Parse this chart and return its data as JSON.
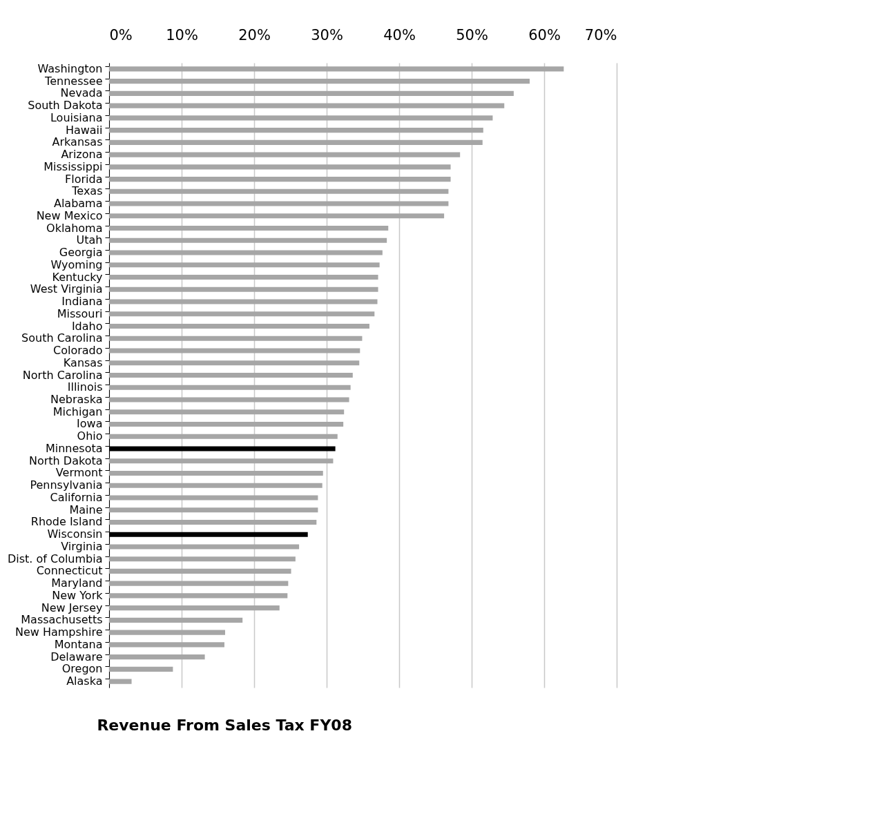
{
  "chart_data": {
    "type": "bar",
    "orientation": "horizontal",
    "title": "Revenue From Sales Tax FY08",
    "categories": [
      "Washington",
      "Tennessee",
      "Nevada",
      "South Dakota",
      "Louisiana",
      "Hawaii",
      "Arkansas",
      "Arizona",
      "Mississippi",
      "Florida",
      "Texas",
      "Alabama",
      "New Mexico",
      "Oklahoma",
      "Utah",
      "Georgia",
      "Wyoming",
      "Kentucky",
      "West Virginia",
      "Indiana",
      "Missouri",
      "Idaho",
      "South Carolina",
      "Colorado",
      "Kansas",
      "North Carolina",
      "Illinois",
      "Nebraska",
      "Michigan",
      "Iowa",
      "Ohio",
      "Minnesota",
      "North Dakota",
      "Vermont",
      "Pennsylvania",
      "California",
      "Maine",
      "Rhode Island",
      "Wisconsin",
      "Virginia",
      "Dist. of Columbia",
      "Connecticut",
      "Maryland",
      "New York",
      "New Jersey",
      "Massachusetts",
      "New Hampshire",
      "Montana",
      "Delaware",
      "Oregon",
      "Alaska"
    ],
    "values": [
      62.7,
      58.0,
      55.8,
      54.5,
      52.9,
      51.6,
      51.5,
      48.4,
      47.1,
      47.1,
      46.8,
      46.8,
      46.2,
      38.5,
      38.3,
      37.7,
      37.3,
      37.1,
      37.1,
      37.0,
      36.6,
      35.9,
      34.9,
      34.6,
      34.5,
      33.6,
      33.3,
      33.1,
      32.4,
      32.3,
      31.5,
      31.2,
      30.9,
      29.5,
      29.4,
      28.8,
      28.8,
      28.6,
      27.4,
      26.2,
      25.7,
      25.1,
      24.7,
      24.6,
      23.5,
      18.4,
      16.0,
      15.9,
      13.2,
      8.8,
      3.1
    ],
    "colors": [
      "#a6a6a6",
      "#a6a6a6",
      "#a6a6a6",
      "#a6a6a6",
      "#a6a6a6",
      "#a6a6a6",
      "#a6a6a6",
      "#a6a6a6",
      "#a6a6a6",
      "#a6a6a6",
      "#a6a6a6",
      "#a6a6a6",
      "#a6a6a6",
      "#a6a6a6",
      "#a6a6a6",
      "#a6a6a6",
      "#a6a6a6",
      "#a6a6a6",
      "#a6a6a6",
      "#a6a6a6",
      "#a6a6a6",
      "#a6a6a6",
      "#a6a6a6",
      "#a6a6a6",
      "#a6a6a6",
      "#a6a6a6",
      "#a6a6a6",
      "#a6a6a6",
      "#a6a6a6",
      "#a6a6a6",
      "#a6a6a6",
      "#000000",
      "#a6a6a6",
      "#a6a6a6",
      "#a6a6a6",
      "#a6a6a6",
      "#a6a6a6",
      "#a6a6a6",
      "#000000",
      "#a6a6a6",
      "#a6a6a6",
      "#a6a6a6",
      "#a6a6a6",
      "#a6a6a6",
      "#a6a6a6",
      "#a6a6a6",
      "#a6a6a6",
      "#a6a6a6",
      "#a6a6a6",
      "#a6a6a6",
      "#a6a6a6"
    ],
    "xlim": [
      0,
      70
    ],
    "xticks": [
      {
        "value": 0,
        "label": "0%"
      },
      {
        "value": 10,
        "label": "10%"
      },
      {
        "value": 20,
        "label": "20%"
      },
      {
        "value": 30,
        "label": "30%"
      },
      {
        "value": 40,
        "label": "40%"
      },
      {
        "value": 50,
        "label": "50%"
      },
      {
        "value": 60,
        "label": "60%"
      },
      {
        "value": 70,
        "label": "70%"
      }
    ],
    "grid": "x"
  }
}
